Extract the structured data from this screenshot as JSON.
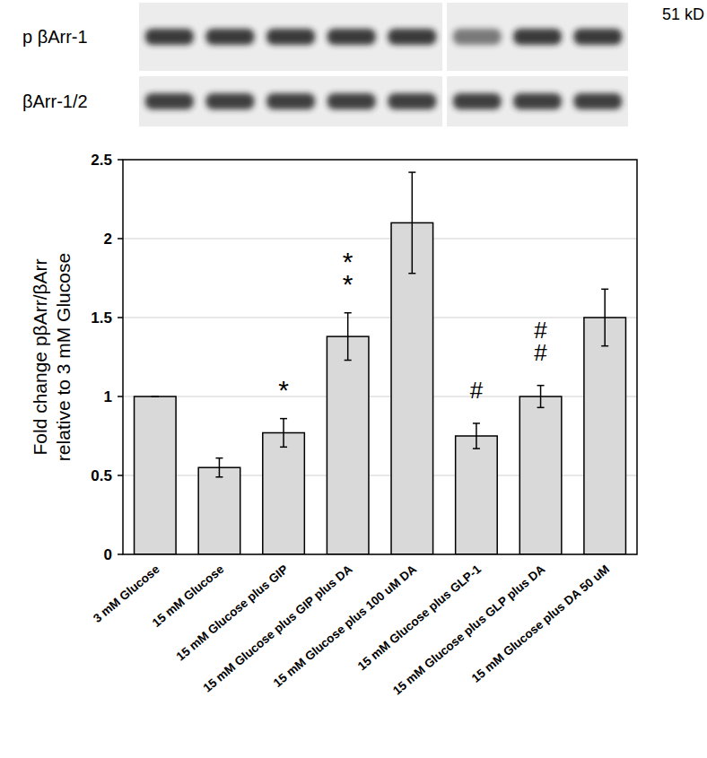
{
  "chart_data": {
    "type": "bar",
    "blot_labels": [
      "p βArr-1",
      "βArr-1/2"
    ],
    "blot_size": "51 kD",
    "y_label": [
      "Fold change pβArr/βArr",
      "relative to 3 mM Glucose"
    ],
    "categories": [
      "3 mM Glucose",
      "15 mM Glucose",
      "15 mM Glucose plus GIP",
      "15 mM Glucose plus GIP plus DA",
      "15 mM Glucose plus 100 uM DA",
      "15 mM Glucose plus GLP-1",
      "15 mM Glucose plus GLP plus DA",
      "15 mM Glucose plus DA 50 uM"
    ],
    "values": [
      1,
      0.55,
      0.77,
      1.38,
      2.1,
      0.75,
      1.0,
      1.5
    ],
    "errors": [
      0,
      0.06,
      0.09,
      0.15,
      0.32,
      0.08,
      0.07,
      0.18
    ],
    "color": "#d9d9d9",
    "ylim": [
      0,
      2.5
    ],
    "yticks": [
      0,
      0.5,
      1,
      1.5,
      2,
      2.5
    ],
    "grid": true,
    "annotations": [
      {
        "category": "15 mM Glucose plus GIP",
        "text": "*"
      },
      {
        "category": "15 mM Glucose plus GIP plus DA",
        "text": "**"
      },
      {
        "category": "15 mM Glucose plus GLP-1",
        "text": "#"
      },
      {
        "category": "15 mM Glucose plus GLP plus DA",
        "text": "##"
      }
    ]
  }
}
